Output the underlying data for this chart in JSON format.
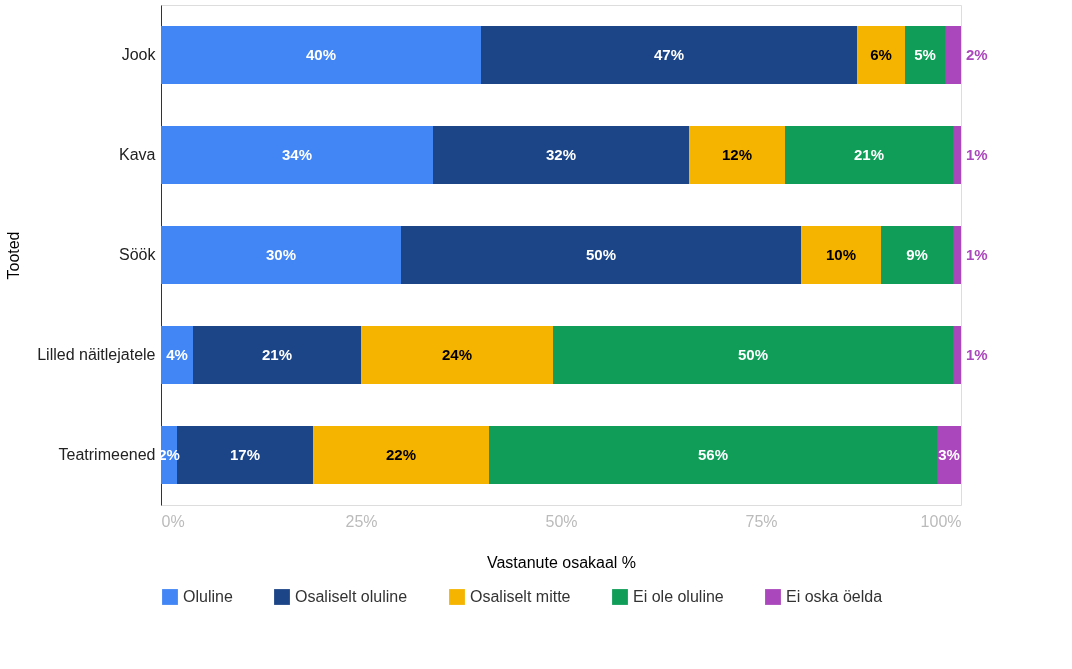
{
  "chart_data": {
    "type": "bar",
    "orientation": "horizontal",
    "stacked": true,
    "xlabel": "Vastanute osakaal %",
    "ylabel": "Tooted",
    "categories": [
      "Jook",
      "Kava",
      "Söök",
      "Lilled näitlejatele",
      "Teatrimeened"
    ],
    "series": [
      {
        "name": "Oluline",
        "color": "#4285f4",
        "values": [
          40,
          34,
          30,
          4,
          2
        ],
        "value_labels": [
          "40%",
          "34%",
          "30%",
          "4%",
          "2%"
        ]
      },
      {
        "name": "Osaliselt oluline",
        "color": "#1c4587",
        "values": [
          47,
          32,
          50,
          21,
          17
        ],
        "value_labels": [
          "47%",
          "32%",
          "50%",
          "21%",
          "17%"
        ]
      },
      {
        "name": "Osaliselt mitte",
        "color": "#f4b400",
        "values": [
          6,
          12,
          10,
          24,
          22
        ],
        "value_labels": [
          "6%",
          "12%",
          "10%",
          "24%",
          "22%"
        ]
      },
      {
        "name": "Ei ole oluline",
        "color": "#0f9d58",
        "values": [
          5,
          21,
          9,
          50,
          56
        ],
        "value_labels": [
          "5%",
          "21%",
          "9%",
          "50%",
          "56%"
        ]
      },
      {
        "name": "Ei oska öelda",
        "color": "#ab47bc",
        "values": [
          2,
          1,
          1,
          1,
          3
        ],
        "value_labels": [
          "2%",
          "1%",
          "1%",
          "1%",
          "3%"
        ]
      }
    ],
    "xlim": [
      0,
      100
    ],
    "xticks": [
      {
        "value": 0,
        "label": "0%"
      },
      {
        "value": 25,
        "label": "25%"
      },
      {
        "value": 50,
        "label": "50%"
      },
      {
        "value": 75,
        "label": "75%"
      },
      {
        "value": 100,
        "label": "100%"
      }
    ],
    "grid": false,
    "legend": "bottom"
  }
}
